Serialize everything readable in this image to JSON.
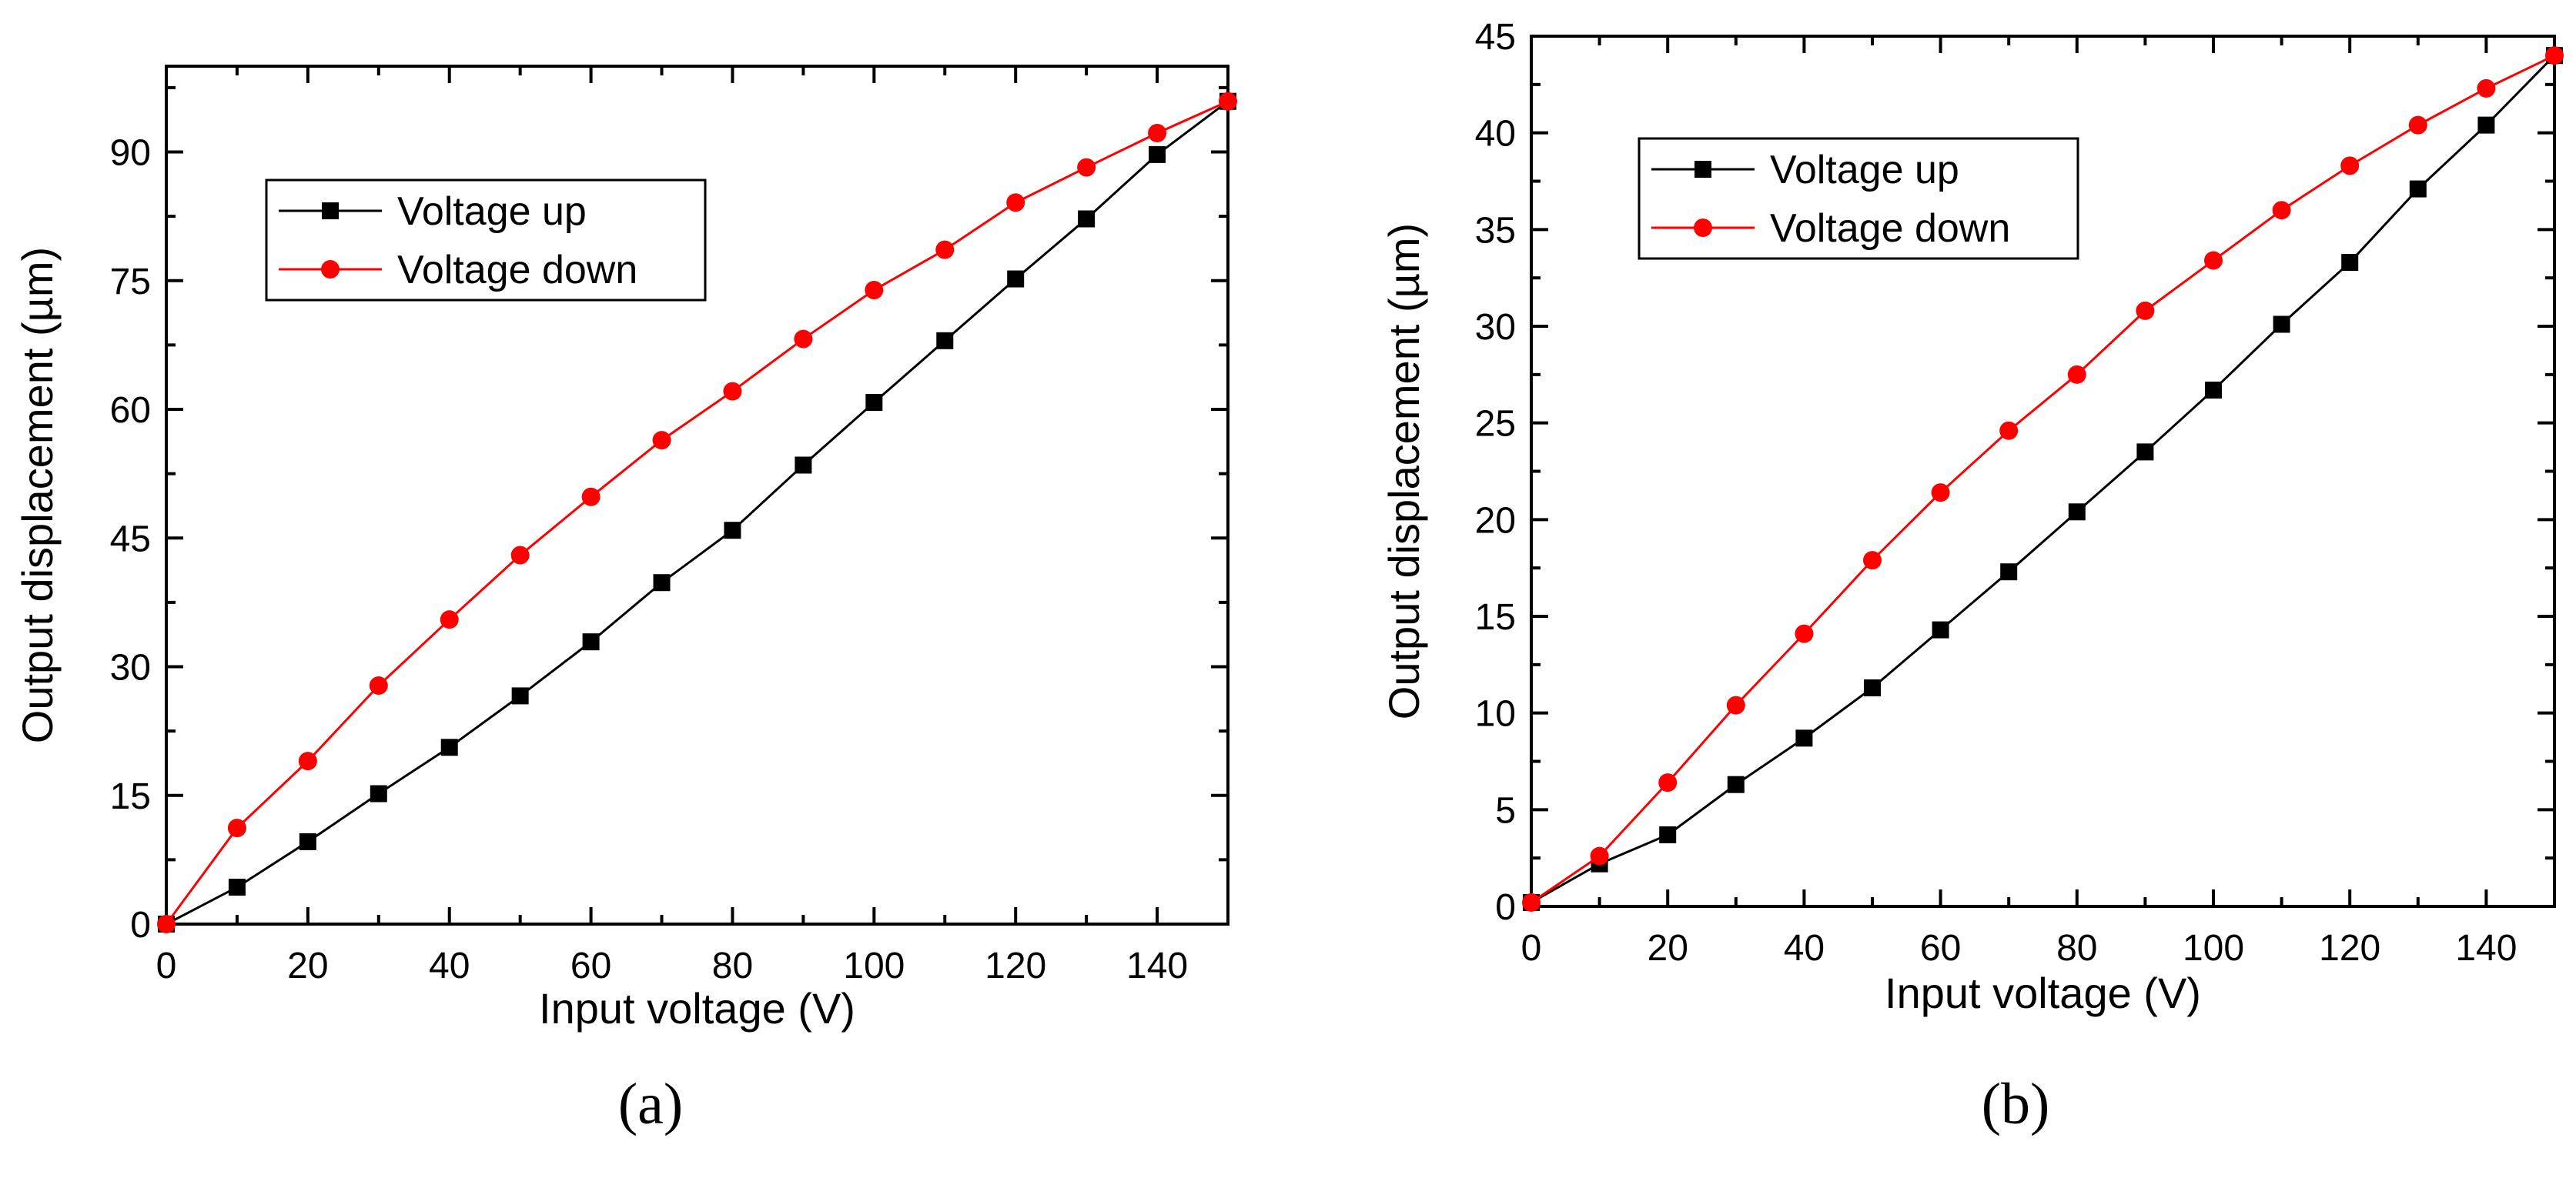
{
  "chart_data": [
    {
      "type": "line",
      "panel_label": "(a)",
      "title": "",
      "xlabel": "Input voltage (V)",
      "ylabel": "Output displacement (µm)",
      "xlim": [
        0,
        150
      ],
      "ylim": [
        0,
        100
      ],
      "xticks": [
        "0",
        "20",
        "40",
        "60",
        "80",
        "100",
        "120",
        "140"
      ],
      "yticks": [
        "0",
        "15",
        "30",
        "45",
        "60",
        "75",
        "90"
      ],
      "legend_position": "top-left",
      "grid": false,
      "x": [
        0,
        10,
        20,
        30,
        40,
        50,
        60,
        70,
        80,
        90,
        100,
        110,
        120,
        130,
        140,
        150
      ],
      "series": [
        {
          "name": "Voltage up",
          "color": "#000000",
          "marker": "square",
          "values": [
            0,
            4.3,
            9.6,
            15.2,
            20.6,
            26.6,
            32.9,
            39.8,
            45.9,
            53.5,
            60.8,
            68.0,
            75.2,
            82.2,
            89.7,
            95.9
          ]
        },
        {
          "name": "Voltage down",
          "color": "#ff0000",
          "marker": "circle",
          "values": [
            0,
            11.2,
            19.0,
            27.8,
            35.5,
            43.0,
            49.8,
            56.4,
            62.1,
            68.2,
            73.9,
            78.6,
            84.1,
            88.2,
            92.2,
            95.9
          ]
        }
      ]
    },
    {
      "type": "line",
      "panel_label": "(b)",
      "title": "",
      "xlabel": "Input voltage (V)",
      "ylabel": "Output displacement (µm)",
      "xlim": [
        0,
        150
      ],
      "ylim": [
        0,
        45
      ],
      "xticks": [
        "0",
        "20",
        "40",
        "60",
        "80",
        "100",
        "120",
        "140"
      ],
      "yticks": [
        "0",
        "5",
        "10",
        "15",
        "20",
        "25",
        "30",
        "35",
        "40",
        "45"
      ],
      "legend_position": "top-left",
      "grid": false,
      "x": [
        0,
        10,
        20,
        30,
        40,
        50,
        60,
        70,
        80,
        90,
        100,
        110,
        120,
        130,
        140,
        150
      ],
      "series": [
        {
          "name": "Voltage up",
          "color": "#000000",
          "marker": "square",
          "values": [
            0.2,
            2.2,
            3.7,
            6.3,
            8.7,
            11.3,
            14.3,
            17.3,
            20.4,
            23.5,
            26.7,
            30.1,
            33.3,
            37.1,
            40.4,
            44.0
          ]
        },
        {
          "name": "Voltage down",
          "color": "#ff0000",
          "marker": "circle",
          "values": [
            0.2,
            2.6,
            6.4,
            10.4,
            14.1,
            17.9,
            21.4,
            24.6,
            27.5,
            30.8,
            33.4,
            36.0,
            38.3,
            40.4,
            42.3,
            44.0
          ]
        }
      ]
    }
  ]
}
